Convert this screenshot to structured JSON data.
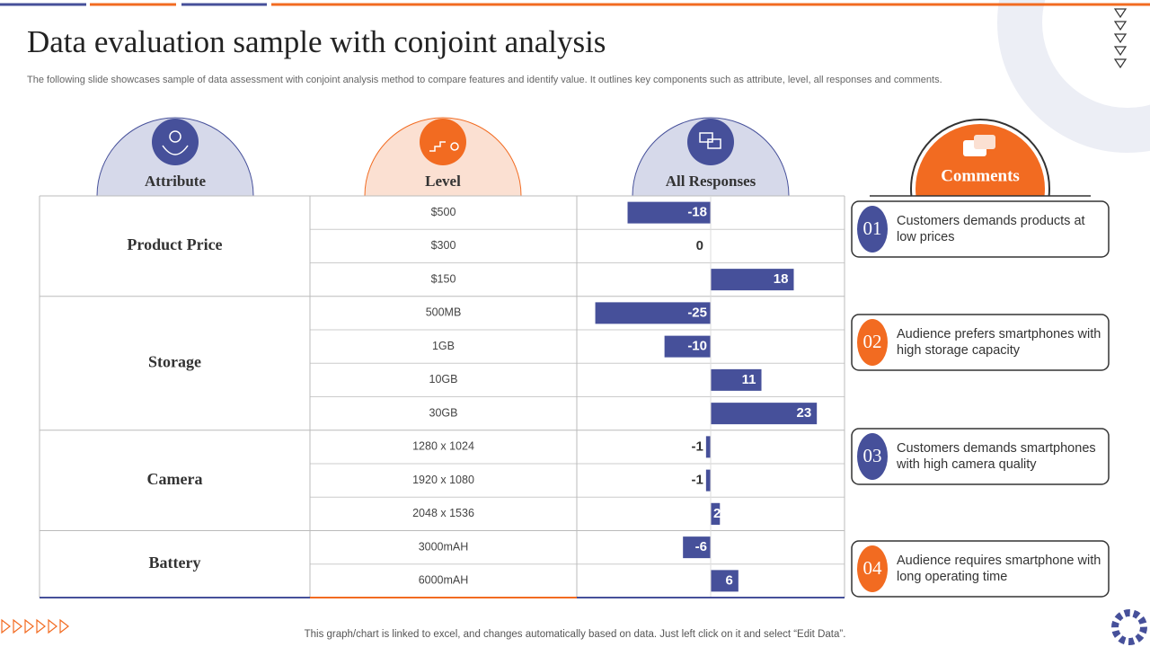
{
  "header": {
    "title": "Data evaluation sample with conjoint analysis",
    "subtitle": "The following slide showcases sample of data assessment with conjoint analysis method to compare features and identify value. It outlines key components such as attribute, level, all responses and comments."
  },
  "table": {
    "headers": [
      "Attribute",
      "Level",
      "All Responses"
    ]
  },
  "chart_data": {
    "type": "bar",
    "orientation": "horizontal",
    "color": "#46509a",
    "xlim": [
      -29,
      29
    ],
    "groups": [
      {
        "name": "Product Price",
        "categories": [
          "$500",
          "$300",
          "$150"
        ],
        "values": [
          -18,
          0,
          18
        ]
      },
      {
        "name": "Storage",
        "categories": [
          "500MB",
          "1GB",
          "10GB",
          "30GB"
        ],
        "values": [
          -25,
          -10,
          11,
          23
        ]
      },
      {
        "name": "Camera",
        "categories": [
          "1280 x 1024",
          "1920 x 1080",
          "2048 x 1536"
        ],
        "values": [
          -1,
          -1,
          2
        ]
      },
      {
        "name": "Battery",
        "categories": [
          "3000mAH",
          "6000mAH"
        ],
        "values": [
          -6,
          6
        ]
      }
    ]
  },
  "comments": {
    "title": "Comments",
    "items": [
      {
        "number": "01",
        "text": "Customers demands products at low prices",
        "color": "#46509a"
      },
      {
        "number": "02",
        "text": "Audience prefers smartphones with high storage capacity",
        "color": "#f26b21"
      },
      {
        "number": "03",
        "text": "Customers demands smartphones with high camera quality",
        "color": "#46509a"
      },
      {
        "number": "04",
        "text": "Audience requires smartphone with long operating time",
        "color": "#f26b21"
      }
    ]
  },
  "footer": "This graph/chart is linked to excel, and changes automatically based on data. Just left click on it and select “Edit Data”."
}
